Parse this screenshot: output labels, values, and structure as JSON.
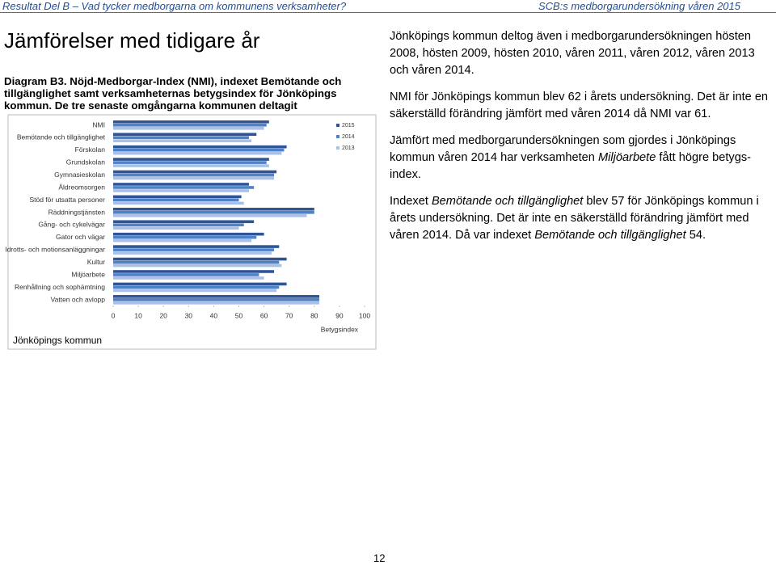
{
  "header": {
    "left": "Resultat Del B – Vad tycker medborgarna om kommunens verksamheter?",
    "right": "SCB:s medborgarundersökning våren 2015"
  },
  "heading": "Jämförelser med tidigare år",
  "caption": "Diagram B3. Nöjd-Medborgar-Index (NMI), indexet Bemötande och tillgänglighet samt verksamheternas betygsindex för Jönköpings kommun. De tre senaste omgångarna kommunen deltagit",
  "paragraphs": [
    [
      "Jönköpings kommun deltog även i medborgarundersökningen hösten 2008, hösten 2009, hösten 2010, våren 2011, våren 2012, våren 2013 och våren 2014."
    ],
    [
      "NMI för Jönköpings kommun blev 62 i årets undersökning. Det är inte en säkerställd förändring jämfört med våren 2014 då NMI var 61."
    ],
    [
      "Jämfört med medborgarundersökningen som gjordes i Jönköpings kommun våren 2014 har verksamheten ",
      "Miljöarbete",
      " fått högre betygs-index."
    ],
    [
      "Indexet ",
      "Bemötande och tillgänglighet",
      " blev 57 för Jönköpings kommun i årets undersökning. Det är inte en säkerställd förändring jämfört med våren 2014. Då var indexet ",
      "Bemötande och tillgänglighet",
      " 54."
    ]
  ],
  "page_number": "12",
  "chart_data": {
    "type": "bar",
    "orientation": "horizontal",
    "categories": [
      "NMI",
      "Bemötande och tillgänglighet",
      "Förskolan",
      "Grundskolan",
      "Gymnasieskolan",
      "Äldreomsorgen",
      "Stöd för utsatta personer",
      "Räddningstjänsten",
      "Gång- och cykelvägar",
      "Gator och vägar",
      "Idrotts- och motionsanläggningar",
      "Kultur",
      "Miljöarbete",
      "Renhållning och sophämtning",
      "Vatten och avlopp"
    ],
    "series": [
      {
        "name": "2015",
        "color": "#2f5597",
        "values": [
          62,
          57,
          69,
          62,
          65,
          54,
          51,
          80,
          56,
          60,
          66,
          69,
          64,
          69,
          82
        ]
      },
      {
        "name": "2014",
        "color": "#4f81c7",
        "values": [
          61,
          54,
          68,
          61,
          64,
          56,
          50,
          80,
          52,
          57,
          64,
          66,
          58,
          66,
          82
        ]
      },
      {
        "name": "2013",
        "color": "#a9c1e8",
        "values": [
          60,
          55,
          67,
          62,
          64,
          54,
          52,
          77,
          50,
          55,
          63,
          67,
          60,
          65,
          82
        ]
      }
    ],
    "xlim": [
      0,
      100
    ],
    "xticks": [
      0,
      10,
      20,
      30,
      40,
      50,
      60,
      70,
      80,
      90,
      100
    ],
    "xlabel": "Betygsindex",
    "footer": "Jönköpings kommun",
    "legend": "top-right"
  }
}
